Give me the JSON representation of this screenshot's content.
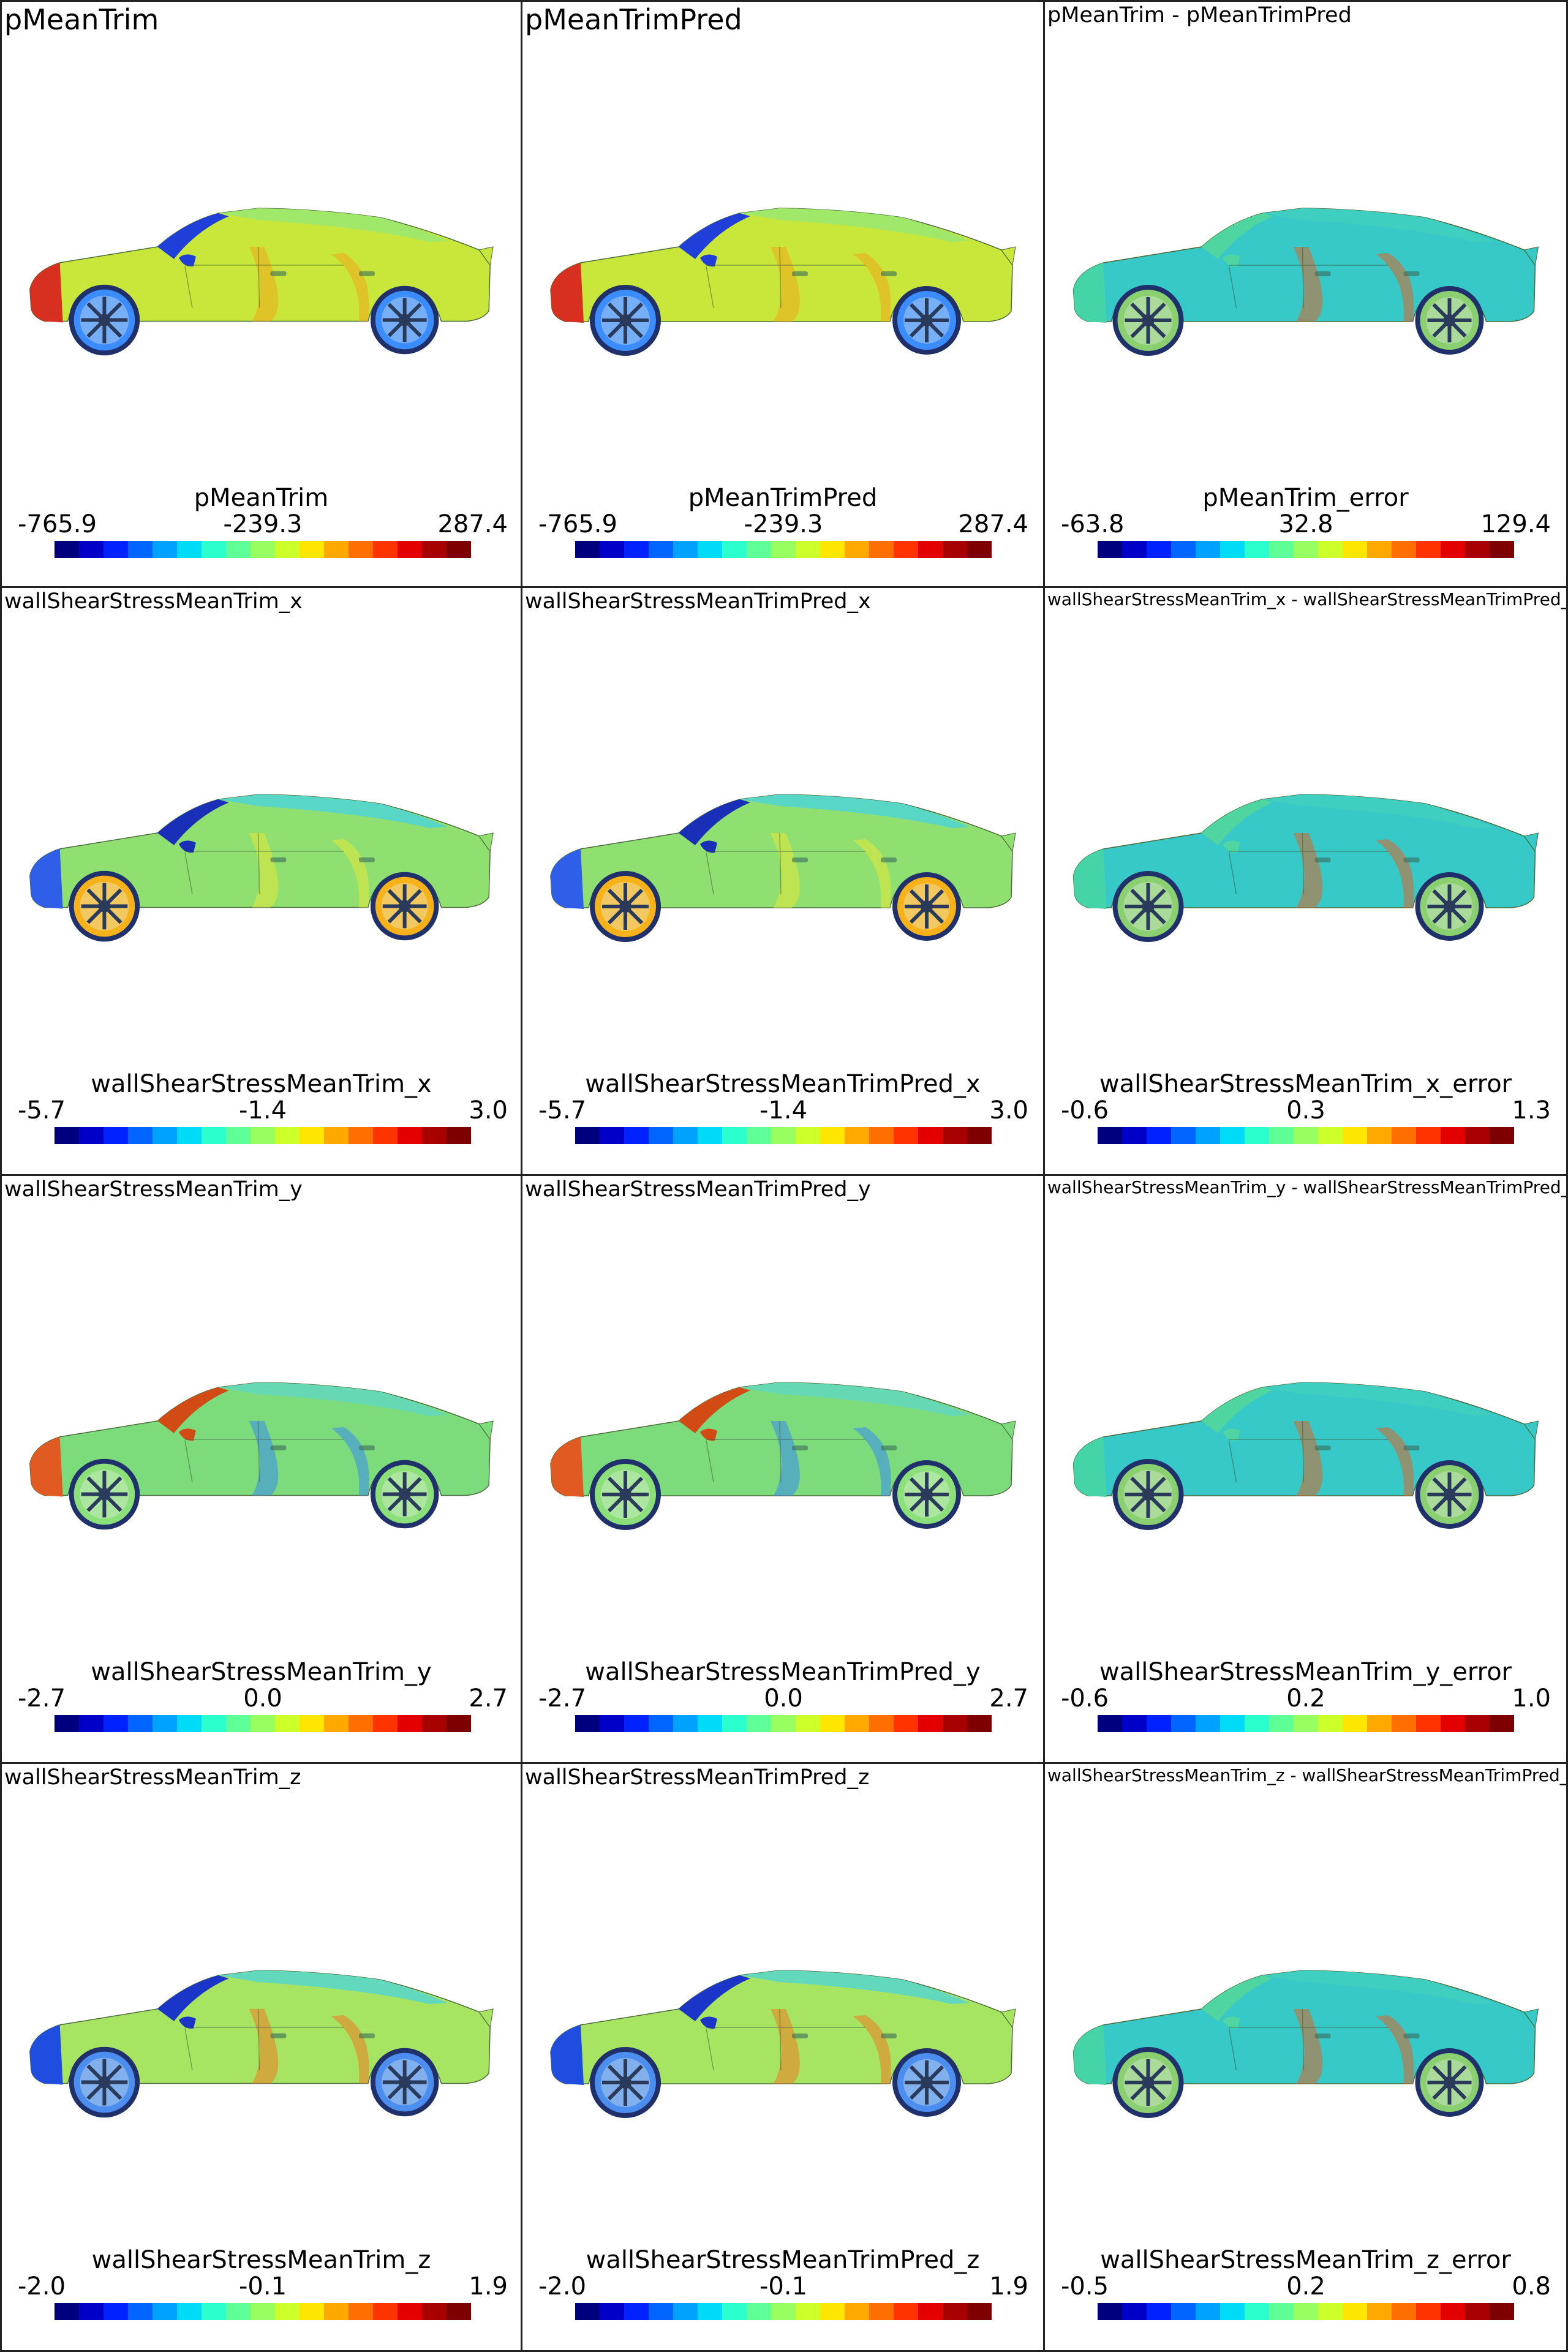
{
  "panels": [
    {
      "title": "pMeanTrim",
      "title_size": "big",
      "bar_title": "pMeanTrim",
      "min": "-765.9",
      "mid": "-239.3",
      "max": "287.4",
      "kind": "pressure"
    },
    {
      "title": "pMeanTrimPred",
      "title_size": "big",
      "bar_title": "pMeanTrimPred",
      "min": "-765.9",
      "mid": "-239.3",
      "max": "287.4",
      "kind": "pressure"
    },
    {
      "title": "pMeanTrim - pMeanTrimPred",
      "title_size": "med",
      "bar_title": "pMeanTrim_error",
      "min": "-63.8",
      "mid": "32.8",
      "max": "129.4",
      "kind": "error"
    },
    {
      "title": "wallShearStressMeanTrim_x",
      "title_size": "med",
      "bar_title": "wallShearStressMeanTrim_x",
      "min": "-5.7",
      "mid": "-1.4",
      "max": "3.0",
      "kind": "shearx"
    },
    {
      "title": "wallShearStressMeanTrimPred_x",
      "title_size": "med",
      "bar_title": "wallShearStressMeanTrimPred_x",
      "min": "-5.7",
      "mid": "-1.4",
      "max": "3.0",
      "kind": "shearx"
    },
    {
      "title": "wallShearStressMeanTrim_x - wallShearStressMeanTrimPred_x",
      "title_size": "small",
      "bar_title": "wallShearStressMeanTrim_x_error",
      "min": "-0.6",
      "mid": "0.3",
      "max": "1.3",
      "kind": "error"
    },
    {
      "title": "wallShearStressMeanTrim_y",
      "title_size": "med",
      "bar_title": "wallShearStressMeanTrim_y",
      "min": "-2.7",
      "mid": "0.0",
      "max": "2.7",
      "kind": "sheary"
    },
    {
      "title": "wallShearStressMeanTrimPred_y",
      "title_size": "med",
      "bar_title": "wallShearStressMeanTrimPred_y",
      "min": "-2.7",
      "mid": "0.0",
      "max": "2.7",
      "kind": "sheary"
    },
    {
      "title": "wallShearStressMeanTrim_y - wallShearStressMeanTrimPred_y",
      "title_size": "small",
      "bar_title": "wallShearStressMeanTrim_y_error",
      "min": "-0.6",
      "mid": "0.2",
      "max": "1.0",
      "kind": "error"
    },
    {
      "title": "wallShearStressMeanTrim_z",
      "title_size": "med",
      "bar_title": "wallShearStressMeanTrim_z",
      "min": "-2.0",
      "mid": "-0.1",
      "max": "1.9",
      "kind": "shearz"
    },
    {
      "title": "wallShearStressMeanTrimPred_z",
      "title_size": "med",
      "bar_title": "wallShearStressMeanTrimPred_z",
      "min": "-2.0",
      "mid": "-0.1",
      "max": "1.9",
      "kind": "shearz"
    },
    {
      "title": "wallShearStressMeanTrim_z - wallShearStressMeanTrimPred_z",
      "title_size": "small",
      "bar_title": "wallShearStressMeanTrim_z_error",
      "min": "-0.5",
      "mid": "0.2",
      "max": "0.8",
      "kind": "error"
    }
  ],
  "colormap": [
    "#00007f",
    "#0000c8",
    "#0022ff",
    "#0066ff",
    "#00a2ff",
    "#00dcf8",
    "#2affcd",
    "#5fff97",
    "#97ff5f",
    "#cdff2a",
    "#ffe600",
    "#ffa800",
    "#ff6e00",
    "#ff3300",
    "#e50000",
    "#a80000",
    "#7f0000"
  ],
  "palette": {
    "pressure": {
      "body": "#c9e63a",
      "front": "#d83020",
      "windshield": "#1f3fd8",
      "roof": "#9fe86a",
      "wheel": "#3b8cff",
      "accent": "#f0a818"
    },
    "shearx": {
      "body": "#8fe070",
      "front": "#2f5fe8",
      "windshield": "#1a2fb8",
      "roof": "#59d7c6",
      "wheel": "#f7b21a",
      "accent": "#e8e83a"
    },
    "sheary": {
      "body": "#7cdc7c",
      "front": "#e05a22",
      "windshield": "#d24a14",
      "roof": "#66d8b4",
      "wheel": "#8ce07a",
      "accent": "#3a8af0"
    },
    "shearz": {
      "body": "#a6e462",
      "front": "#1f4de0",
      "windshield": "#1a35c8",
      "roof": "#62d8bc",
      "wheel": "#4c8ef0",
      "accent": "#f07a20"
    },
    "error": {
      "body": "#37c8c8",
      "front": "#44d4a8",
      "windshield": "#4fd6a0",
      "roof": "#3fcfc0",
      "wheel": "#8ad070",
      "accent": "#d8682a"
    }
  }
}
